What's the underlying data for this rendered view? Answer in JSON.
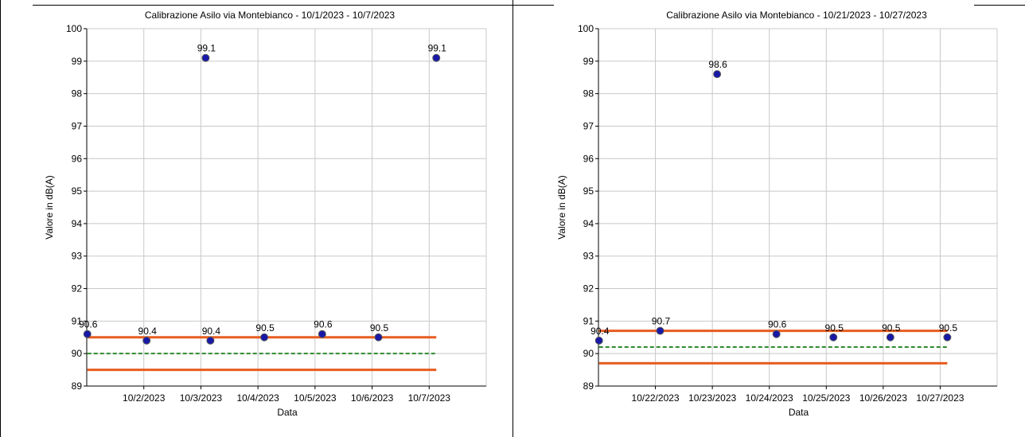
{
  "chart_data": [
    {
      "type": "scatter",
      "title": "Calibrazione Asilo via Montebianco - 10/1/2023 - 10/7/2023",
      "xlabel": "Data",
      "ylabel": "Valore in dB(A)",
      "ylim": [
        89,
        100
      ],
      "xlim": [
        "2023-10-01",
        "2023-10-08"
      ],
      "x_tick_labels": [
        "10/2/2023",
        "10/3/2023",
        "10/4/2023",
        "10/5/2023",
        "10/6/2023",
        "10/7/2023"
      ],
      "y_ticks": [
        89,
        90,
        91,
        92,
        93,
        94,
        95,
        96,
        97,
        98,
        99,
        100
      ],
      "grid": true,
      "points": [
        {
          "x": "2023-10-01 00:15",
          "y": 90.6,
          "label": "90.6"
        },
        {
          "x": "2023-10-02 01:10",
          "y": 90.4,
          "label": "90.4"
        },
        {
          "x": "2023-10-03 02:00",
          "y": 99.1,
          "label": "99.1"
        },
        {
          "x": "2023-10-03 04:00",
          "y": 90.4,
          "label": "90.4"
        },
        {
          "x": "2023-10-04 02:40",
          "y": 90.5,
          "label": "90.5"
        },
        {
          "x": "2023-10-05 03:00",
          "y": 90.6,
          "label": "90.6"
        },
        {
          "x": "2023-10-06 02:40",
          "y": 90.5,
          "label": "90.5"
        },
        {
          "x": "2023-10-07 03:00",
          "y": 99.1,
          "label": "99.1"
        }
      ],
      "reference_lines": [
        {
          "y": 90.5,
          "style": "solid",
          "color": "#e85d1f"
        },
        {
          "y": 90.0,
          "style": "dashed",
          "color": "#2e8b2e"
        },
        {
          "y": 89.5,
          "style": "solid",
          "color": "#e85d1f"
        }
      ],
      "reference_range": [
        "2023-10-01 00:15",
        "2023-10-07 03:00"
      ],
      "point_color": "#1818a8"
    },
    {
      "type": "scatter",
      "title": "Calibrazione Asilo via Montebianco - 10/21/2023 - 10/27/2023",
      "xlabel": "Data",
      "ylabel": "Valore in dB(A)",
      "ylim": [
        89,
        100
      ],
      "xlim": [
        "2023-10-21",
        "2023-10-28"
      ],
      "x_tick_labels": [
        "10/22/2023",
        "10/23/2023",
        "10/24/2023",
        "10/25/2023",
        "10/26/2023",
        "10/27/2023"
      ],
      "y_ticks": [
        89,
        90,
        91,
        92,
        93,
        94,
        95,
        96,
        97,
        98,
        99,
        100
      ],
      "grid": true,
      "points": [
        {
          "x": "2023-10-21 00:15",
          "y": 90.4,
          "label": "90.4"
        },
        {
          "x": "2023-10-22 02:00",
          "y": 90.7,
          "label": "90.7"
        },
        {
          "x": "2023-10-23 02:00",
          "y": 98.6,
          "label": "98.6"
        },
        {
          "x": "2023-10-24 03:00",
          "y": 90.6,
          "label": "90.6"
        },
        {
          "x": "2023-10-25 03:00",
          "y": 90.5,
          "label": "90.5"
        },
        {
          "x": "2023-10-26 03:00",
          "y": 90.5,
          "label": "90.5"
        },
        {
          "x": "2023-10-27 03:00",
          "y": 90.5,
          "label": "90.5"
        }
      ],
      "reference_lines": [
        {
          "y": 90.7,
          "style": "solid",
          "color": "#e85d1f"
        },
        {
          "y": 90.2,
          "style": "dashed",
          "color": "#2e8b2e"
        },
        {
          "y": 89.7,
          "style": "solid",
          "color": "#e85d1f"
        }
      ],
      "reference_range": [
        "2023-10-21 00:15",
        "2023-10-27 03:00"
      ],
      "point_color": "#1818a8"
    }
  ]
}
